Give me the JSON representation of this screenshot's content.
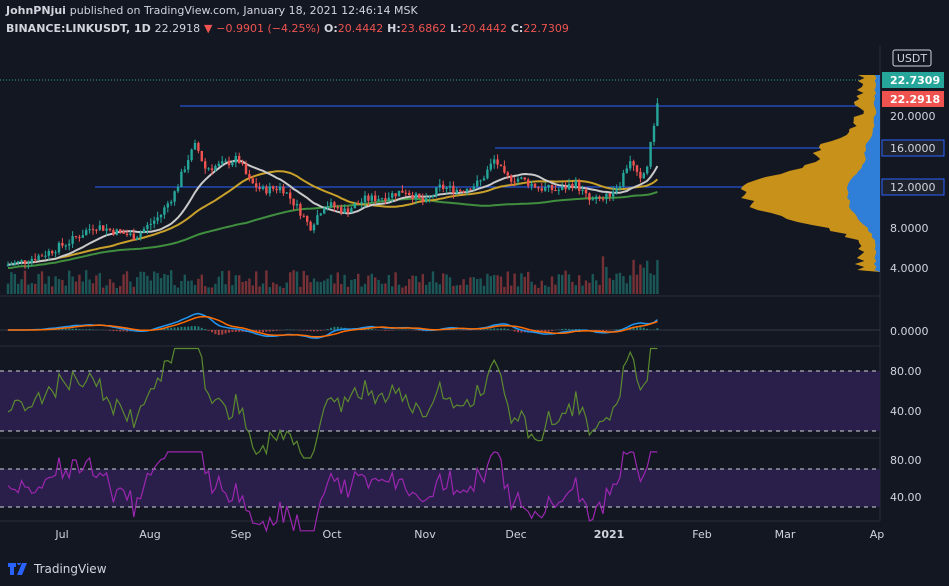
{
  "header": {
    "line1_user": "JohnPNjui",
    "line1_text": "published on TradingView.com, January 18, 2021 12:46:14 MSK",
    "symbol": "BINANCE:LINKUSDT, 1D",
    "last": "22.2918",
    "change": "−0.9901 (−4.25%)",
    "o_label": "O:",
    "o": "20.4442",
    "h_label": "H:",
    "h": "23.6862",
    "l_label": "L:",
    "l": "20.4442",
    "c_label": "C:",
    "c": "22.7309"
  },
  "currency": "USDT",
  "price_axis": {
    "ticks": [
      "4.0000",
      "8.0000",
      "12.0000",
      "16.0000",
      "20.0000"
    ],
    "badges": [
      {
        "text": "22.7309",
        "color": "#26a69a"
      },
      {
        "text": "22.2918",
        "color": "#ef5350"
      },
      {
        "text": "16.0000",
        "color": "#1e222d"
      },
      {
        "text": "12.0000",
        "color": "#1e222d"
      }
    ]
  },
  "macd_axis": {
    "ticks": [
      "0.0000"
    ]
  },
  "rsi_axis": {
    "ticks": [
      "80.00",
      "40.00"
    ]
  },
  "stoch_axis": {
    "ticks": [
      "80.00",
      "40.00"
    ]
  },
  "time_axis": [
    "Jul",
    "Aug",
    "Sep",
    "Oct",
    "Nov",
    "Dec",
    "2021",
    "Feb",
    "Mar",
    "Ap"
  ],
  "footer": {
    "brand": "TradingView"
  },
  "colors": {
    "up": "#26a69a",
    "down": "#ef5350",
    "bg": "#131722",
    "ma_short": "#c9c9c9",
    "ma_mid": "#c8a02a",
    "ma_long": "#3f8f3f",
    "profile_blue": "#2f7ed8",
    "profile_gold": "#c8921a",
    "macd": "#2196f3",
    "signal": "#ff6d00",
    "rsi": "#5b8a2f",
    "stoch": "#9c27b0",
    "band": "#2a1e4a"
  }
}
